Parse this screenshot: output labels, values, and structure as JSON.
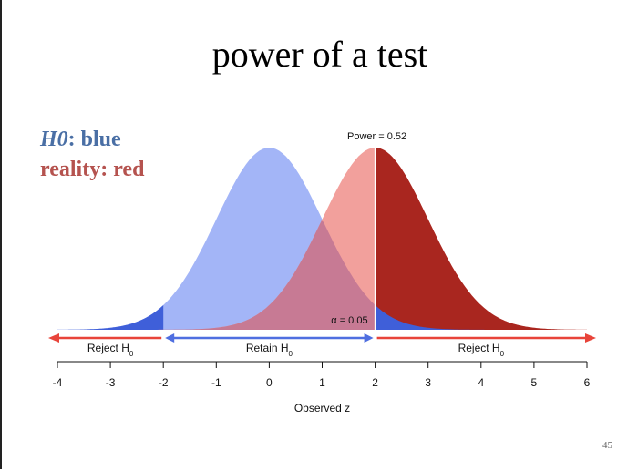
{
  "slide": {
    "title": "power of a test",
    "page_number": "45"
  },
  "legend": {
    "h0_label": "H0",
    "h0_value": ": blue",
    "reality_label": "reality: red"
  },
  "annotations": {
    "power": "Power = 0.52",
    "alpha": "α = 0.05"
  },
  "regions": {
    "reject_left": "Reject H",
    "retain": "Retain H",
    "reject_right": "Reject H",
    "subscript": "0"
  },
  "colors": {
    "null_fill": "#a3b5f7",
    "null_tail": "#3f5fd9",
    "alt_fill": "#f2a09c",
    "alt_reject": "#a9261f",
    "overlap": "#c77a94",
    "legend_blue": "#4a6fa5",
    "legend_red": "#b5534f",
    "reject_arrow": "#e8443a",
    "retain_arrow": "#4f6fe0"
  },
  "chart_data": {
    "type": "area",
    "xlabel": "Observed z",
    "ticks": [
      -4,
      -3,
      -2,
      -1,
      0,
      1,
      2,
      3,
      4,
      5,
      6
    ],
    "xlim": [
      -4,
      6
    ],
    "critical_values": [
      -2,
      2
    ],
    "series": [
      {
        "distribution": "normal",
        "mean": 0,
        "sd": 1
      },
      {
        "distribution": "normal",
        "mean": 2,
        "sd": 1
      }
    ]
  }
}
